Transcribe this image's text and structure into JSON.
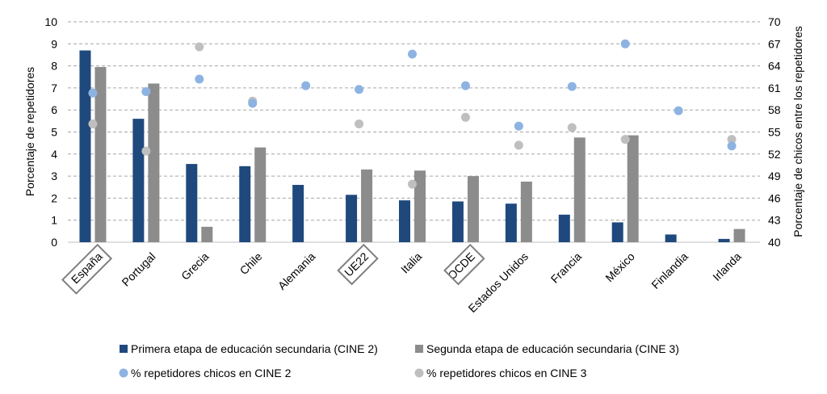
{
  "colors": {
    "cine2_bar": "#1f497d",
    "cine3_bar": "#8c8c8c",
    "cine2_dot": "#8db3e2",
    "cine3_dot": "#bfbfbf",
    "grid": "#a6a6a6",
    "text": "#000000",
    "highlight_box": "#7f7f7f"
  },
  "chart_data": {
    "type": "bar",
    "categories": [
      "España",
      "Portugal",
      "Grecia",
      "Chile",
      "Alemania",
      "UE22",
      "Italia",
      "OCDE",
      "Estados Unidos",
      "Francia",
      "México",
      "Finlandia",
      "Irlanda"
    ],
    "highlighted_categories": [
      "España",
      "UE22",
      "OCDE"
    ],
    "series": [
      {
        "name": "Primera etapa de educación secundaria (CINE 2)",
        "type": "bar",
        "axis": "left",
        "color": "#1f497d",
        "values": [
          8.7,
          5.6,
          3.55,
          3.45,
          2.6,
          2.15,
          1.9,
          1.85,
          1.75,
          1.25,
          0.9,
          0.35,
          0.15
        ]
      },
      {
        "name": "Segunda etapa de educación secundaria (CINE 3)",
        "type": "bar",
        "axis": "left",
        "color": "#8c8c8c",
        "values": [
          7.95,
          7.2,
          0.7,
          4.3,
          null,
          3.3,
          3.25,
          3.0,
          2.75,
          4.75,
          4.85,
          null,
          0.6
        ]
      },
      {
        "name": "% repetidores chicos en CINE 2",
        "type": "scatter",
        "axis": "right",
        "color": "#8db3e2",
        "values": [
          60.3,
          60.5,
          62.2,
          58.9,
          61.3,
          60.8,
          65.6,
          61.3,
          55.8,
          61.2,
          67.0,
          57.9,
          53.1
        ]
      },
      {
        "name": "% repetidores chicos en CINE 3",
        "type": "scatter",
        "axis": "right",
        "color": "#bfbfbf",
        "values": [
          56.1,
          52.4,
          66.6,
          59.2,
          null,
          56.1,
          47.9,
          57.0,
          53.2,
          55.6,
          54.0,
          null,
          54.0
        ]
      }
    ],
    "y_left": {
      "label": "Porcentaje de repetidores",
      "min": 0,
      "max": 10,
      "ticks": [
        "0",
        "1",
        "2",
        "3",
        "4",
        "5",
        "6",
        "7",
        "8",
        "9",
        "10"
      ]
    },
    "y_right": {
      "label": "Porcentaje de chicos entre los repetidores",
      "min": 40,
      "max": 70,
      "ticks": [
        "40",
        "43",
        "46",
        "49",
        "52",
        "55",
        "58",
        "61",
        "64",
        "67",
        "70"
      ]
    },
    "grid": true,
    "legend_position": "bottom"
  }
}
